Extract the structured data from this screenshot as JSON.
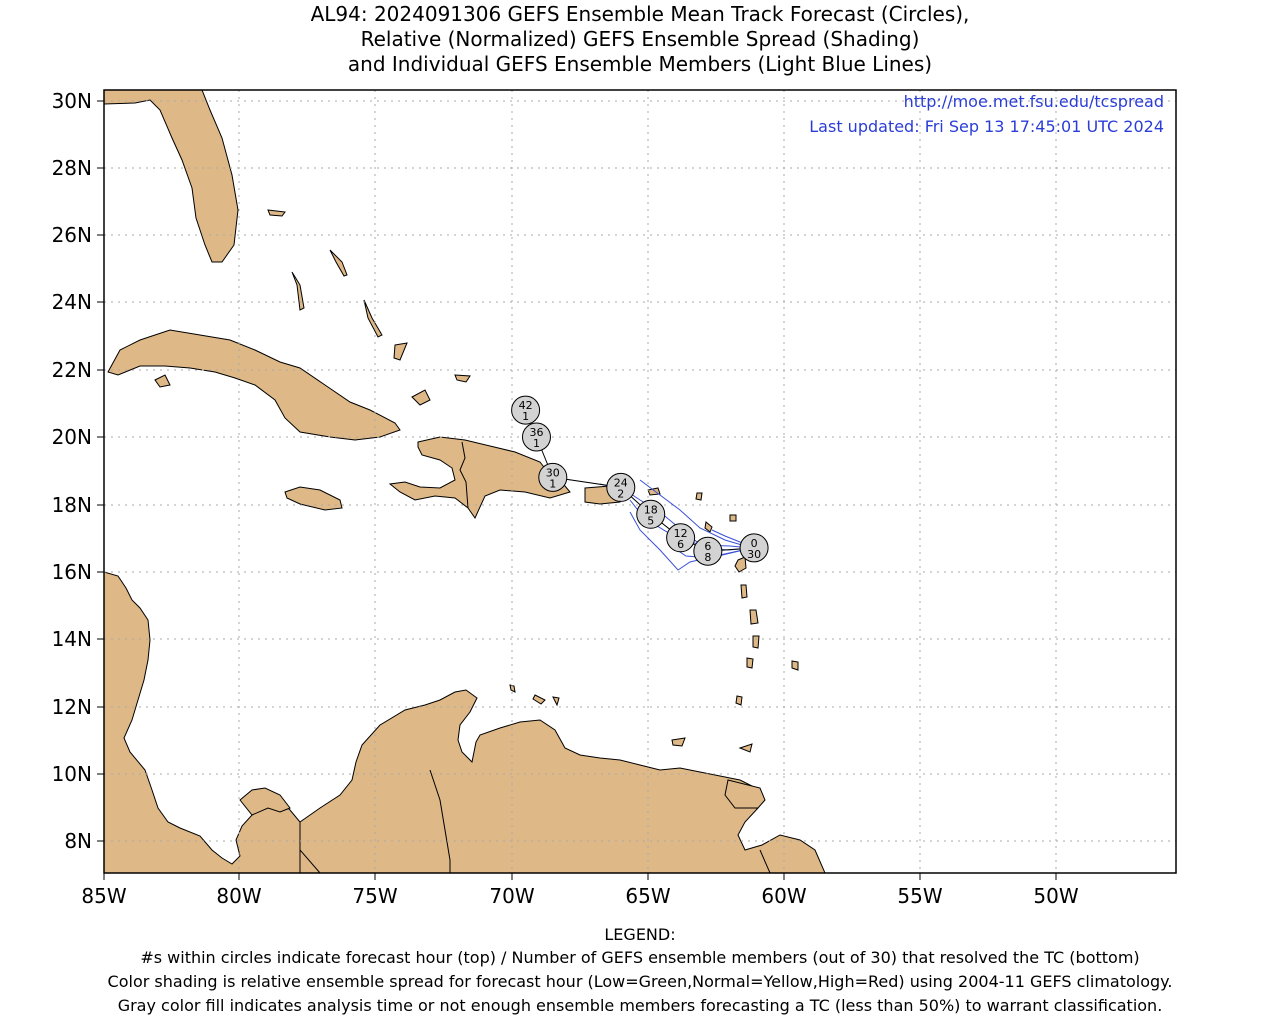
{
  "title": {
    "line1": "AL94: 2024091306 GEFS Ensemble Mean Track Forecast (Circles),",
    "line2": "Relative (Normalized) GEFS Ensemble Spread (Shading)",
    "line3": "and Individual GEFS Ensemble Members (Light Blue Lines)"
  },
  "info": {
    "url": "http://moe.met.fsu.edu/tcspread",
    "updated": "Last updated: Fri Sep 13 17:45:01 UTC 2024"
  },
  "axes": {
    "lon_labels": [
      "85W",
      "80W",
      "75W",
      "70W",
      "65W",
      "60W",
      "55W",
      "50W"
    ],
    "lat_labels": [
      "30N",
      "28N",
      "26N",
      "24N",
      "22N",
      "20N",
      "18N",
      "16N",
      "14N",
      "12N",
      "10N",
      "8N"
    ]
  },
  "track": [
    {
      "hour": "0",
      "members": "30",
      "lon": -61.1,
      "lat": 16.7
    },
    {
      "hour": "6",
      "members": "8",
      "lon": -62.8,
      "lat": 16.6
    },
    {
      "hour": "12",
      "members": "6",
      "lon": -63.8,
      "lat": 17.0
    },
    {
      "hour": "18",
      "members": "5",
      "lon": -64.9,
      "lat": 17.7
    },
    {
      "hour": "24",
      "members": "2",
      "lon": -66.0,
      "lat": 18.5
    },
    {
      "hour": "30",
      "members": "1",
      "lon": -68.5,
      "lat": 18.8
    },
    {
      "hour": "36",
      "members": "1",
      "lon": -69.1,
      "lat": 20.0
    },
    {
      "hour": "42",
      "members": "1",
      "lon": -69.5,
      "lat": 20.8
    }
  ],
  "colors": {
    "land": "#deb887",
    "member_lines": "#3a50d8",
    "circle_fill": "#d3d3d3",
    "info_text": "#2b3dd8"
  },
  "legend": {
    "heading": "LEGEND:",
    "line1": "#s within circles indicate forecast hour (top) / Number of GEFS ensemble members (out of 30) that resolved the TC (bottom)",
    "line2": "Color shading is relative ensemble spread for forecast hour (Low=Green,Normal=Yellow,High=Red) using 2004-11 GEFS climatology.",
    "line3": "Gray color fill indicates analysis time or not enough ensemble members forecasting a TC (less than 50%) to warrant classification."
  }
}
